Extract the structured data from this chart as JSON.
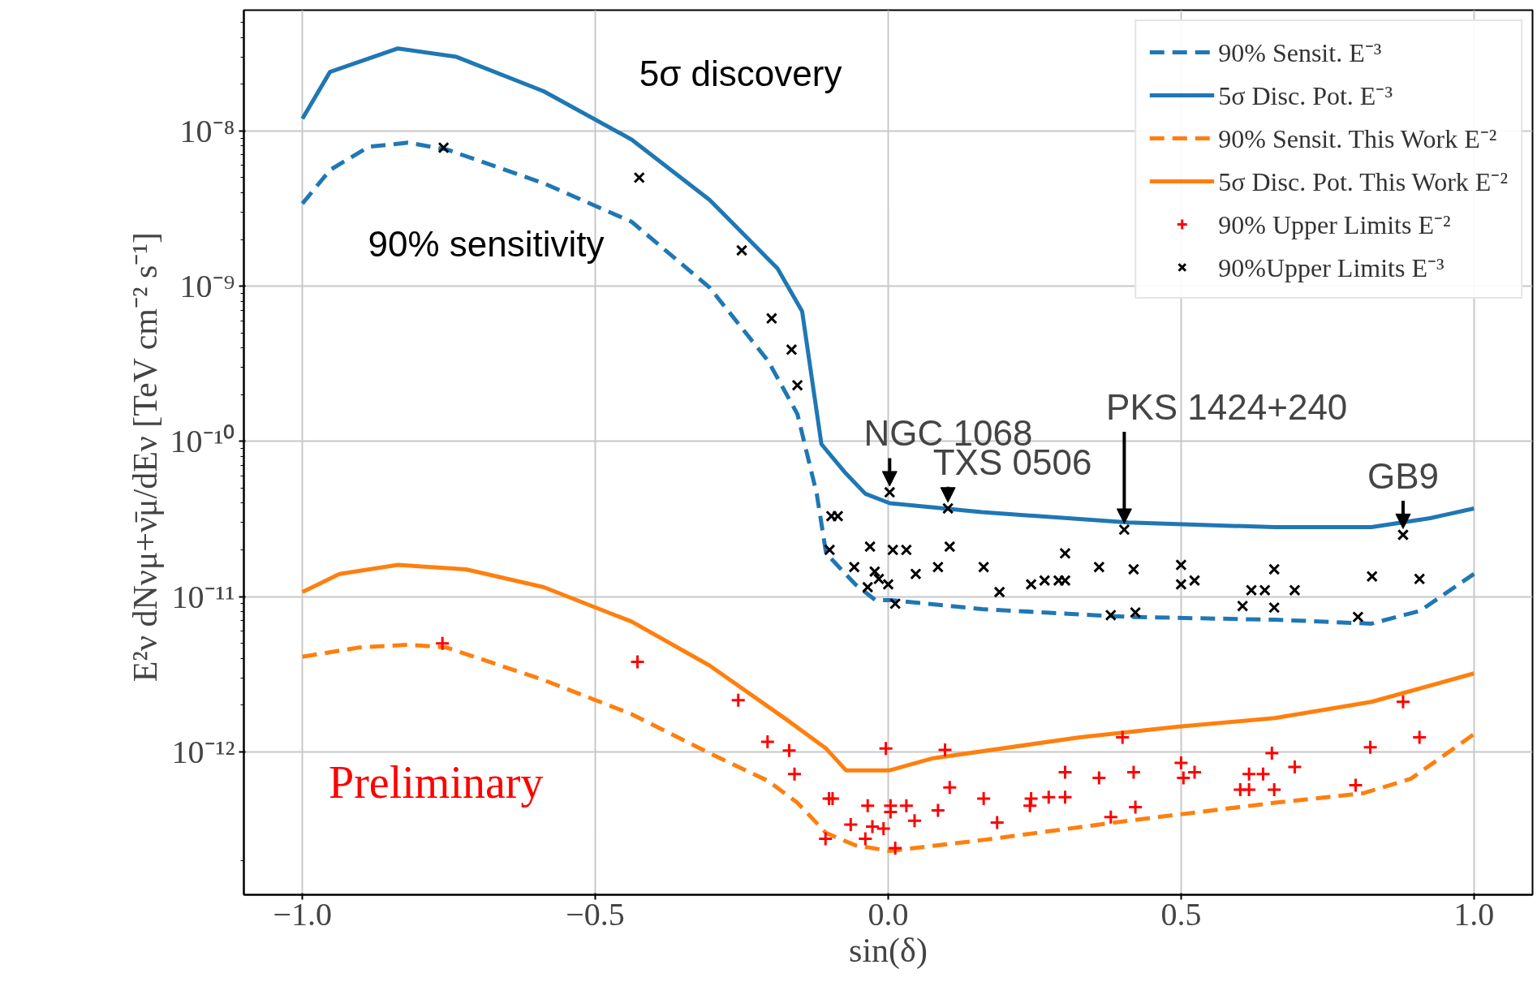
{
  "chart_data": {
    "type": "line",
    "xlabel": "sin(δ)",
    "ylabel": "E²ν dNνμ+ν̄μ/dEν  [TeV cm⁻² s⁻¹]",
    "log": true,
    "grid": true,
    "legend": "top right",
    "xlim": [
      -1.1,
      1.1
    ],
    "xticks": [
      {
        "value": -1.0,
        "label": "−1.0"
      },
      {
        "value": -0.5,
        "label": "−0.5"
      },
      {
        "value": 0.0,
        "label": "0.0"
      },
      {
        "value": 0.5,
        "label": "0.5"
      },
      {
        "value": 1.0,
        "label": "1.0"
      }
    ],
    "ylim": [
      1.2e-13,
      6e-08
    ],
    "yticks": [
      {
        "value": 1e-12,
        "label": "10⁻¹²"
      },
      {
        "value": 1e-11,
        "label": "10⁻¹¹"
      },
      {
        "value": 1e-10,
        "label": "10⁻¹⁰"
      },
      {
        "value": 1e-09,
        "label": "10⁻⁹"
      },
      {
        "value": 1e-08,
        "label": "10⁻⁸"
      }
    ],
    "series": [
      {
        "name": "90% Sensit. E⁻³",
        "line_style": "dashed",
        "color": "#1f77b4",
        "x": [
          -1.0,
          -0.953,
          -0.887,
          -0.82,
          -0.754,
          -0.588,
          -0.438,
          -0.305,
          -0.205,
          -0.155,
          -0.122,
          -0.106,
          -0.056,
          -0.022,
          0.0025,
          0.16,
          0.41,
          0.66,
          0.825,
          0.908,
          1.0
        ],
        "values": [
          3.4e-09,
          5.6e-09,
          7.9e-09,
          8.4e-09,
          7.6e-09,
          4.6e-09,
          2.6e-09,
          9.8e-10,
          3.3e-10,
          1.5e-10,
          4.6e-11,
          1.9e-11,
          1.2e-11,
          9.5e-12,
          9.5e-12,
          8.3e-12,
          7.4e-12,
          7.1e-12,
          6.7e-12,
          8.1e-12,
          1.4e-11
        ]
      },
      {
        "name": "5σ Disc. Pot. E⁻³",
        "line_style": "solid",
        "color": "#1f77b4",
        "x": [
          -1.0,
          -0.953,
          -0.837,
          -0.737,
          -0.588,
          -0.438,
          -0.305,
          -0.189,
          -0.147,
          -0.114,
          -0.072,
          -0.039,
          0.0025,
          0.16,
          0.41,
          0.66,
          0.825,
          0.925,
          1.0
        ],
        "values": [
          1.2e-08,
          2.4e-08,
          3.4e-08,
          3e-08,
          1.8e-08,
          8.8e-09,
          3.6e-09,
          1.3e-09,
          6.9e-10,
          9.6e-11,
          6.2e-11,
          4.6e-11,
          4e-11,
          3.5e-11,
          3e-11,
          2.8e-11,
          2.8e-11,
          3.2e-11,
          3.7e-11
        ]
      },
      {
        "name": "90% Sensit. This Work E⁻²",
        "line_style": "dashed",
        "color": "#ff7f0e",
        "x": [
          -1.0,
          -0.903,
          -0.82,
          -0.754,
          -0.588,
          -0.438,
          -0.305,
          -0.205,
          -0.155,
          -0.106,
          -0.056,
          0.0025,
          0.16,
          0.41,
          0.66,
          0.81,
          0.892,
          1.0
        ],
        "values": [
          4.1e-12,
          4.7e-12,
          4.9e-12,
          4.7e-12,
          2.9e-12,
          1.75e-12,
          9.8e-13,
          6.5e-13,
          4.7e-13,
          3e-13,
          2.5e-13,
          2.3e-13,
          2.7e-13,
          3.6e-13,
          4.7e-13,
          5.4e-13,
          6.7e-13,
          1.3e-12
        ]
      },
      {
        "name": "5σ Disc. Pot. This Work E⁻²",
        "line_style": "solid",
        "color": "#ff7f0e",
        "x": [
          -1.0,
          -0.937,
          -0.837,
          -0.721,
          -0.588,
          -0.438,
          -0.305,
          -0.172,
          -0.106,
          -0.072,
          0.0025,
          0.077,
          0.327,
          0.493,
          0.66,
          0.825,
          1.0
        ],
        "values": [
          1.07e-11,
          1.4e-11,
          1.6e-11,
          1.5e-11,
          1.15e-11,
          6.9e-12,
          3.6e-12,
          1.6e-12,
          1.05e-12,
          7.6e-13,
          7.6e-13,
          9.1e-13,
          1.24e-12,
          1.45e-12,
          1.65e-12,
          2.1e-12,
          3.2e-12
        ]
      },
      {
        "name": "90% Upper Limits E⁻²",
        "type": "scatter",
        "marker": "cross",
        "color": "#ff0000",
        "x": [
          -0.761,
          -0.428,
          -0.256,
          -0.206,
          -0.169,
          -0.16,
          -0.101,
          -0.095,
          -0.107,
          -0.064,
          -0.035,
          -0.039,
          -0.027,
          -0.008,
          -0.004,
          0.004,
          0.004,
          0.012,
          0.031,
          0.045,
          0.085,
          0.097,
          0.105,
          0.163,
          0.186,
          0.242,
          0.244,
          0.274,
          0.302,
          0.302,
          0.36,
          0.38,
          0.4,
          0.419,
          0.422,
          0.5,
          0.504,
          0.523,
          0.601,
          0.616,
          0.616,
          0.64,
          0.655,
          0.659,
          0.694,
          0.798,
          0.823,
          0.879,
          0.907
        ],
        "values": [
          5e-12,
          3.8e-12,
          2.15e-12,
          1.16e-12,
          1.02e-12,
          7.2e-13,
          5e-13,
          5e-13,
          2.75e-13,
          3.4e-13,
          4.5e-13,
          2.75e-13,
          3.3e-13,
          3.2e-13,
          1.05e-12,
          4.5e-13,
          4.1e-13,
          2.4e-13,
          4.5e-13,
          3.6e-13,
          4.2e-13,
          1.03e-12,
          5.9e-13,
          5e-13,
          3.5e-13,
          4.5e-13,
          5e-13,
          5.1e-13,
          5.1e-13,
          7.4e-13,
          6.8e-13,
          3.8e-13,
          1.24e-12,
          7.4e-13,
          4.4e-13,
          8.5e-13,
          6.8e-13,
          7.4e-13,
          5.7e-13,
          5.7e-13,
          7.2e-13,
          7.2e-13,
          9.8e-13,
          5.7e-13,
          8e-13,
          6.1e-13,
          1.07e-12,
          2.1e-12,
          1.24e-12
        ]
      },
      {
        "name": "90%Upper Limits E⁻³",
        "type": "scatter",
        "marker": "x",
        "color": "#000000",
        "x": [
          -0.759,
          -0.425,
          -0.25,
          -0.199,
          -0.165,
          -0.155,
          -0.097,
          -0.086,
          -0.1,
          0.0025,
          0.102,
          0.403,
          0.879,
          -0.058,
          -0.031,
          -0.035,
          -0.023,
          -0.016,
          0.0,
          0.008,
          0.031,
          0.012,
          0.047,
          0.085,
          0.105,
          0.163,
          0.19,
          0.244,
          0.267,
          0.291,
          0.302,
          0.302,
          0.36,
          0.419,
          0.38,
          0.422,
          0.5,
          0.5,
          0.523,
          0.605,
          0.62,
          0.643,
          0.659,
          0.659,
          0.694,
          0.802,
          0.826,
          0.907
        ],
        "values": [
          7.8e-09,
          5e-09,
          1.7e-09,
          6.2e-10,
          3.9e-10,
          2.3e-10,
          3.3e-11,
          3.3e-11,
          2e-11,
          4.7e-11,
          3.7e-11,
          2.7e-11,
          2.5e-11,
          1.55e-11,
          2.1e-11,
          1.15e-11,
          1.45e-11,
          1.3e-11,
          1.2e-11,
          2e-11,
          2e-11,
          9e-12,
          1.4e-11,
          1.55e-11,
          2.1e-11,
          1.55e-11,
          1.07e-11,
          1.2e-11,
          1.27e-11,
          1.27e-11,
          1.9e-11,
          1.27e-11,
          1.55e-11,
          1.5e-11,
          7.6e-12,
          7.9e-12,
          1.6e-11,
          1.2e-11,
          1.27e-11,
          8.7e-12,
          1.1e-11,
          1.1e-11,
          1.5e-11,
          8.5e-12,
          1.1e-11,
          7.4e-12,
          1.35e-11,
          1.3e-11
        ]
      }
    ],
    "annotations": [
      "5σ discovery",
      "90%  sensitivity",
      "Preliminary",
      {
        "text": "NGC 1068",
        "x": 0.0025,
        "y": 4.7e-11
      },
      {
        "text": "TXS 0506",
        "x": 0.102,
        "y": 3.7e-11
      },
      {
        "text": "PKS 1424+240",
        "x": 0.403,
        "y": 2.7e-11
      },
      {
        "text": "GB9",
        "x": 0.879,
        "y": 2.5e-11
      }
    ]
  }
}
